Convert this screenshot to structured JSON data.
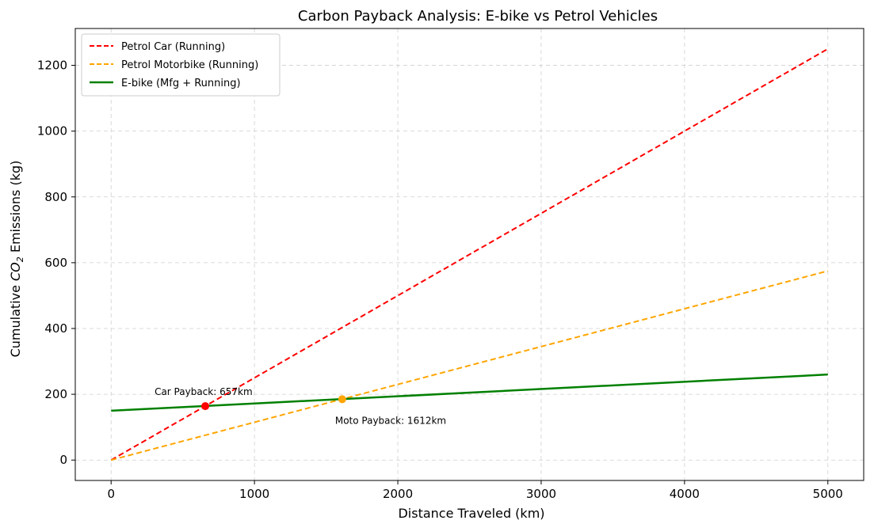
{
  "chart_data": {
    "type": "line",
    "title": "Carbon Payback Analysis: E-bike vs Petrol Vehicles",
    "xlabel": "Distance Traveled (km)",
    "ylabel_prefix": "Cumulative ",
    "ylabel_co": "CO",
    "ylabel_sub": "2",
    "ylabel_suffix": " Emissions (kg)",
    "xlim": [
      -250,
      5250
    ],
    "ylim": [
      -62,
      1312
    ],
    "xticks": [
      0,
      1000,
      2000,
      3000,
      4000,
      5000
    ],
    "xtick_labels": [
      "0",
      "1000",
      "2000",
      "3000",
      "4000",
      "5000"
    ],
    "yticks": [
      0,
      200,
      400,
      600,
      800,
      1000,
      1200
    ],
    "ytick_labels": [
      "0",
      "200",
      "400",
      "600",
      "800",
      "1000",
      "1200"
    ],
    "grid": true,
    "legend_position": "top-left",
    "series": [
      {
        "name": "Petrol Car (Running)",
        "x": [
          0,
          5000
        ],
        "y": [
          0,
          1250
        ],
        "color": "#ff0000",
        "style": "dashed"
      },
      {
        "name": "Petrol Motorbike (Running)",
        "x": [
          0,
          5000
        ],
        "y": [
          0,
          575
        ],
        "color": "#ffa500",
        "style": "dashed"
      },
      {
        "name": "E-bike (Mfg + Running)",
        "x": [
          0,
          5000
        ],
        "y": [
          150,
          260
        ],
        "color": "#008000",
        "style": "solid"
      }
    ],
    "points": [
      {
        "label": "Car Payback: 657km",
        "x": 657,
        "y": 164,
        "color": "#ff0000",
        "label_position": "above-left"
      },
      {
        "label": "Moto Payback: 1612km",
        "x": 1612,
        "y": 185,
        "color": "#ffa500",
        "label_position": "below"
      }
    ]
  }
}
